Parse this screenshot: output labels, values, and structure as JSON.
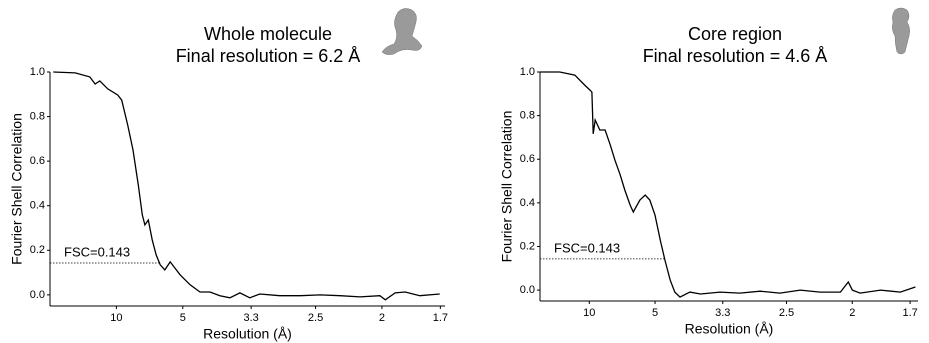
{
  "chart_data": [
    {
      "type": "line",
      "title": "Whole molecule",
      "subtitle": "Final resolution = 6.2 Å",
      "x_label": "Resolution (Å)",
      "y_label": "Fourier Shell Correlation",
      "xlim": [
        0,
        0.595
      ],
      "ylim": [
        -0.05,
        1.0
      ],
      "xticks": [
        {
          "value": 0.1,
          "label": "10"
        },
        {
          "value": 0.2,
          "label": "5"
        },
        {
          "value": 0.303,
          "label": "3.3"
        },
        {
          "value": 0.4,
          "label": "2.5"
        },
        {
          "value": 0.5,
          "label": "2"
        },
        {
          "value": 0.588,
          "label": "1.7"
        }
      ],
      "yticks": [
        {
          "value": 0,
          "label": "0.0"
        },
        0.2,
        0.4,
        0.6,
        0.8,
        {
          "value": 1,
          "label": "1.0"
        }
      ],
      "threshold": 0.143,
      "threshold_label": "FSC=0.143",
      "series": [
        {
          "color": "#000000",
          "x": [
            0.005,
            0.038,
            0.06,
            0.068,
            0.075,
            0.087,
            0.102,
            0.108,
            0.117,
            0.125,
            0.133,
            0.139,
            0.143,
            0.148,
            0.154,
            0.16,
            0.166,
            0.173,
            0.181,
            0.188,
            0.196,
            0.211,
            0.226,
            0.241,
            0.256,
            0.271,
            0.286,
            0.301,
            0.316,
            0.346,
            0.377,
            0.407,
            0.437,
            0.467,
            0.497,
            0.505,
            0.52,
            0.535,
            0.557,
            0.587
          ],
          "values": [
            1.0,
            0.996,
            0.978,
            0.946,
            0.96,
            0.924,
            0.897,
            0.874,
            0.762,
            0.65,
            0.493,
            0.359,
            0.314,
            0.336,
            0.247,
            0.179,
            0.135,
            0.112,
            0.148,
            0.121,
            0.09,
            0.045,
            0.013,
            0.013,
            -0.004,
            -0.013,
            0.009,
            -0.013,
            0.004,
            -0.004,
            -0.004,
            0,
            -0.004,
            -0.009,
            -0.004,
            -0.022,
            0.009,
            0.013,
            -0.004,
            0.004
          ]
        }
      ]
    },
    {
      "type": "line",
      "title": "Core region",
      "subtitle": "Final resolution = 4.6 Å",
      "x_label": "Resolution (Å)",
      "y_label": "Fourier Shell Correlation",
      "xlim": [
        0.025,
        0.6
      ],
      "ylim": [
        -0.05,
        1.0
      ],
      "xticks": [
        {
          "value": 0.1,
          "label": "10"
        },
        {
          "value": 0.2,
          "label": "5"
        },
        {
          "value": 0.303,
          "label": "3.3"
        },
        {
          "value": 0.4,
          "label": "2.5"
        },
        {
          "value": 0.5,
          "label": "2"
        },
        {
          "value": 0.588,
          "label": "1.7"
        }
      ],
      "yticks": [
        {
          "value": 0,
          "label": "0.0"
        },
        0.2,
        0.4,
        0.6,
        0.8,
        {
          "value": 1,
          "label": "1.0"
        }
      ],
      "threshold": 0.143,
      "threshold_label": "FSC=0.143",
      "series": [
        {
          "color": "#000000",
          "x": [
            0.025,
            0.055,
            0.078,
            0.093,
            0.101,
            0.104,
            0.106,
            0.109,
            0.116,
            0.124,
            0.132,
            0.139,
            0.147,
            0.154,
            0.162,
            0.167,
            0.177,
            0.185,
            0.192,
            0.2,
            0.208,
            0.215,
            0.223,
            0.23,
            0.238,
            0.253,
            0.269,
            0.299,
            0.329,
            0.36,
            0.39,
            0.421,
            0.451,
            0.482,
            0.494,
            0.5,
            0.512,
            0.543,
            0.573,
            0.596
          ],
          "values": [
            1.0,
            1.0,
            0.986,
            0.94,
            0.917,
            0.908,
            0.716,
            0.78,
            0.734,
            0.734,
            0.665,
            0.596,
            0.528,
            0.459,
            0.39,
            0.358,
            0.413,
            0.436,
            0.413,
            0.344,
            0.229,
            0.138,
            0.046,
            -0.009,
            -0.032,
            -0.009,
            -0.018,
            -0.009,
            -0.014,
            -0.005,
            -0.014,
            0,
            -0.009,
            -0.009,
            0.037,
            0,
            -0.014,
            0,
            -0.009,
            0.014
          ]
        }
      ]
    }
  ]
}
